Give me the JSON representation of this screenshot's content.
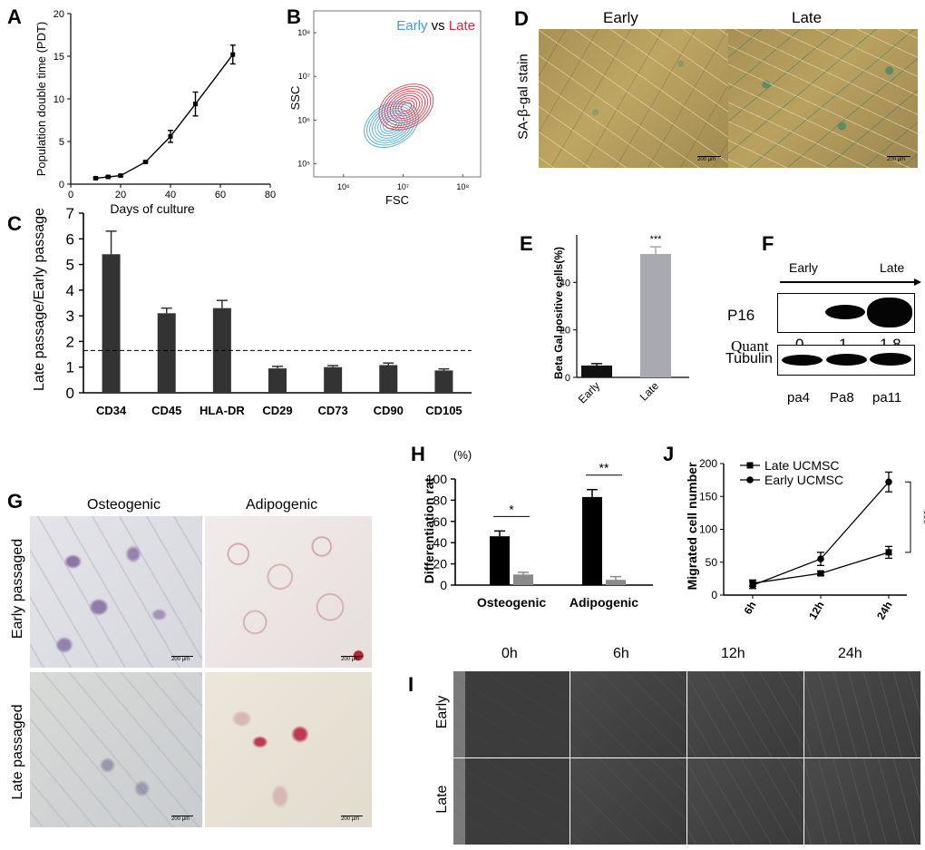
{
  "panel_labels": {
    "a": "A",
    "b": "B",
    "c": "C",
    "d": "D",
    "e": "E",
    "f": "F",
    "g": "G",
    "h": "H",
    "i": "I",
    "j": "J"
  },
  "colors": {
    "bar_dark": "#333333",
    "bar_gray": "#8a8a8a",
    "early": "#39a0dc",
    "late": "#dc2a38",
    "ebar_early": "#111111",
    "ebar_late": "#a9a9b0"
  },
  "chart_data": [
    {
      "panel": "A",
      "type": "line",
      "xlabel": "Days of culture",
      "ylabel": "Population double time (PDT)",
      "xlim": [
        0,
        80
      ],
      "ylim": [
        0,
        20
      ],
      "xticks": [
        "0",
        "20",
        "40",
        "60",
        "80"
      ],
      "yticks": [
        "0",
        "5",
        "10",
        "15",
        "20"
      ],
      "points": [
        {
          "x": 10,
          "y": 0.7,
          "err": 0.1
        },
        {
          "x": 15,
          "y": 0.85,
          "err": 0.1
        },
        {
          "x": 20,
          "y": 1.0,
          "err": 0.1
        },
        {
          "x": 30,
          "y": 2.6,
          "err": 0.1
        },
        {
          "x": 40,
          "y": 5.6,
          "err": 0.7
        },
        {
          "x": 50,
          "y": 9.4,
          "err": 1.4
        },
        {
          "x": 65,
          "y": 15.2,
          "err": 1.1
        }
      ]
    },
    {
      "panel": "B",
      "type": "scatter",
      "xlabel": "FSC",
      "ylabel": "SSC",
      "legend_early": "Early",
      "legend_vs": " vs ",
      "legend_late": "Late",
      "xticks": [
        "10⁶",
        "10⁷",
        "10⁸"
      ],
      "yticks": [
        "10⁸",
        "10⁷",
        "10⁶",
        "10⁵"
      ],
      "series": [
        {
          "name": "Early",
          "center_log": [
            6.8,
            5.9
          ]
        },
        {
          "name": "Late",
          "center_log": [
            7.05,
            6.3
          ]
        }
      ]
    },
    {
      "panel": "C",
      "type": "bar",
      "ylabel": "Late passage/Early passage",
      "ylim": [
        0,
        7
      ],
      "yticks": [
        "0",
        "1",
        "2",
        "3",
        "4",
        "5",
        "6",
        "7"
      ],
      "categories": [
        "CD34",
        "CD45",
        "HLA-DR",
        "CD29",
        "CD73",
        "CD90",
        "CD105"
      ],
      "values": [
        5.4,
        3.1,
        3.3,
        0.95,
        1.0,
        1.08,
        0.87
      ],
      "errors": [
        0.9,
        0.2,
        0.3,
        0.08,
        0.06,
        0.08,
        0.06
      ],
      "reference_line": 1.65
    },
    {
      "panel": "E",
      "type": "bar",
      "ylabel": "Beta Gal positive cells(%)",
      "ylim": [
        0,
        60
      ],
      "yticks": [
        "0",
        "20",
        "40"
      ],
      "categories": [
        "Early",
        "Late"
      ],
      "values": [
        5,
        52
      ],
      "errors": [
        0.8,
        3
      ],
      "significance": "***"
    },
    {
      "panel": "H",
      "type": "bar",
      "unit_label": "(%)",
      "ylabel": "Differentiation rat",
      "ylim": [
        0,
        100
      ],
      "yticks": [
        "0",
        "20",
        "40",
        "60",
        "80",
        "100"
      ],
      "categories": [
        "Osteogenic",
        "Adipogenic"
      ],
      "series": [
        {
          "values": [
            46,
            83
          ],
          "errors": [
            5,
            7
          ]
        },
        {
          "values": [
            10,
            5
          ],
          "errors": [
            2,
            3
          ]
        }
      ],
      "significance": [
        "*",
        "**"
      ]
    },
    {
      "panel": "J",
      "type": "line",
      "ylabel": "Migrated cell number",
      "ylim": [
        0,
        200
      ],
      "yticks": [
        "0",
        "50",
        "100",
        "150",
        "200"
      ],
      "categories": [
        "6h",
        "12h",
        "24h"
      ],
      "series": [
        {
          "name": "Late UCMSC",
          "marker": "square",
          "values": [
            18,
            33,
            65
          ],
          "errors": [
            5,
            3,
            9
          ]
        },
        {
          "name": "Early UCMSC",
          "marker": "circle",
          "values": [
            15,
            55,
            172
          ],
          "errors": [
            5,
            10,
            15
          ]
        }
      ],
      "significance": "***"
    }
  ],
  "panel_d": {
    "ylabel": "SA-β-gal stain",
    "cols": [
      "Early",
      "Late"
    ],
    "scalebar": "200 µm"
  },
  "panel_f": {
    "early": "Early",
    "late": "Late",
    "row1": "P16",
    "quant_label": "Quant",
    "quant_values": [
      "0",
      "1",
      "1.8"
    ],
    "row2": "Tubulin",
    "lanes": [
      "pa4",
      "Pa8",
      "pa11"
    ]
  },
  "panel_g": {
    "cols": [
      "Osteogenic",
      "Adipogenic"
    ],
    "rows": [
      "Early passaged",
      "Late passaged"
    ],
    "scalebar": "200 µm"
  },
  "panel_i": {
    "cols": [
      "0h",
      "6h",
      "12h",
      "24h"
    ],
    "rows": [
      "Early",
      "Late"
    ]
  }
}
